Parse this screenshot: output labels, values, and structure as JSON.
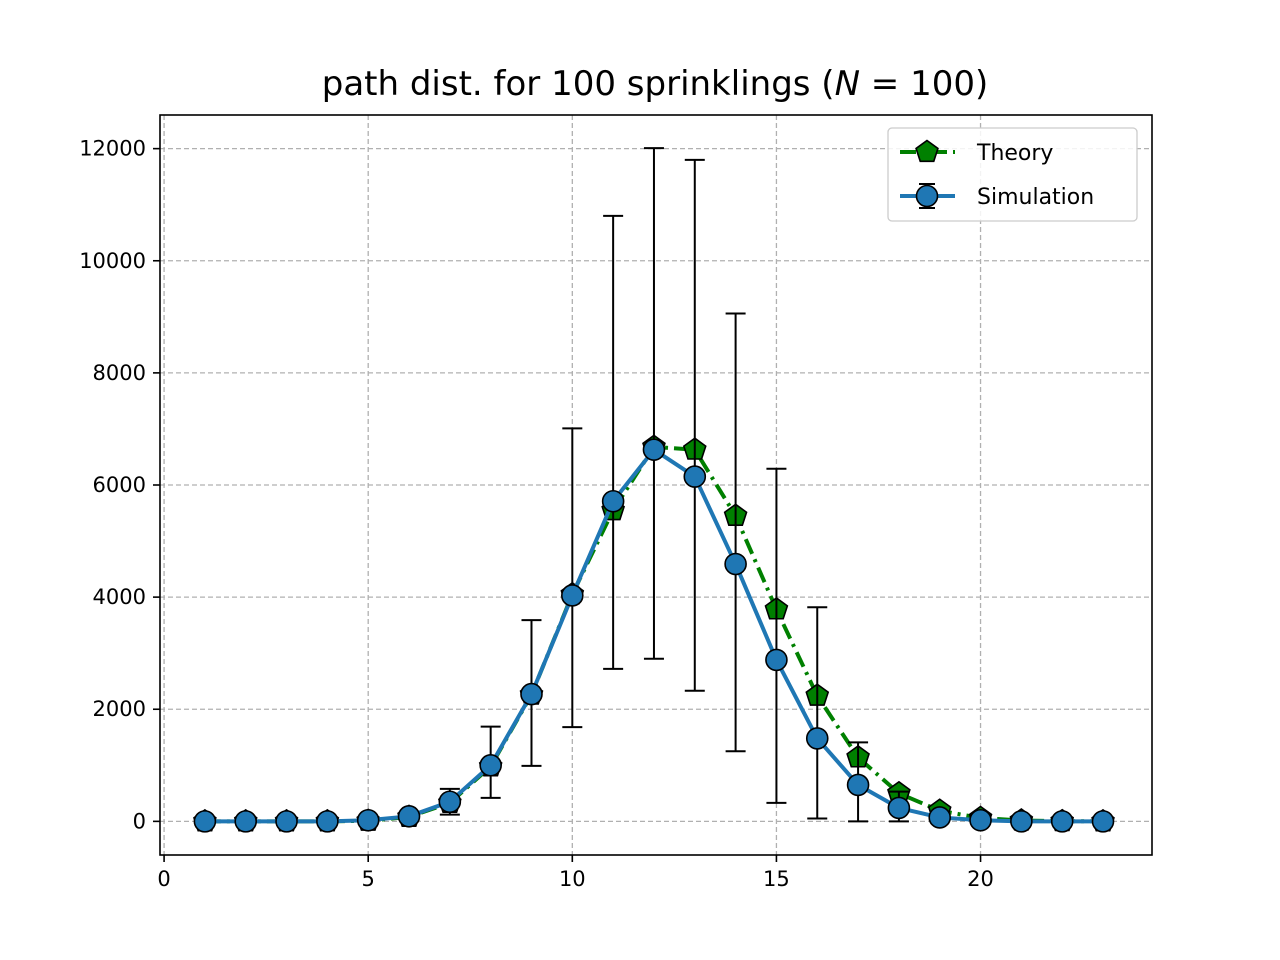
{
  "chart_data": {
    "type": "line",
    "title_parts": {
      "prefix": "path dist.  for 100 sprinklings (",
      "var": "N",
      "eq": " = 100",
      "suffix": ")"
    },
    "xlabel": "",
    "ylabel": "",
    "xlim": [
      -0.1,
      24.2
    ],
    "ylim": [
      -600,
      12600
    ],
    "xticks": [
      0,
      5,
      10,
      15,
      20
    ],
    "yticks": [
      0,
      2000,
      4000,
      6000,
      8000,
      10000,
      12000
    ],
    "grid": true,
    "legend_position": "top-right",
    "series": [
      {
        "name": "Theory",
        "marker": "pentagon",
        "line_style": "dash-dot",
        "color": "#008000",
        "x": [
          1,
          2,
          3,
          4,
          5,
          6,
          7,
          8,
          9,
          10,
          11,
          12,
          13,
          14,
          15,
          16,
          17,
          18,
          19,
          20,
          21,
          22,
          23
        ],
        "y": [
          0,
          0,
          0,
          0,
          10,
          80,
          330,
          980,
          2260,
          4050,
          5550,
          6680,
          6630,
          5450,
          3780,
          2240,
          1140,
          500,
          190,
          60,
          15,
          3,
          0
        ]
      },
      {
        "name": "Simulation",
        "marker": "circle",
        "line_style": "solid",
        "color": "#1f77b4",
        "x": [
          1,
          2,
          3,
          4,
          5,
          6,
          7,
          8,
          9,
          10,
          11,
          12,
          13,
          14,
          15,
          16,
          17,
          18,
          19,
          20,
          21,
          22,
          23
        ],
        "y": [
          0,
          0,
          0,
          0,
          20,
          90,
          350,
          1000,
          2270,
          4030,
          5710,
          6630,
          6150,
          4590,
          2880,
          1480,
          650,
          240,
          70,
          20,
          0,
          0,
          0
        ],
        "err_low": [
          0,
          0,
          0,
          0,
          15,
          60,
          120,
          420,
          990,
          1680,
          2720,
          2900,
          2330,
          1250,
          330,
          50,
          0,
          0,
          0,
          0,
          0,
          0,
          0
        ],
        "err_high": [
          0,
          0,
          0,
          0,
          40,
          120,
          580,
          1690,
          3590,
          7010,
          10800,
          12010,
          11800,
          9060,
          6290,
          3820,
          1410,
          530,
          140,
          40,
          0,
          0,
          0
        ]
      }
    ]
  }
}
